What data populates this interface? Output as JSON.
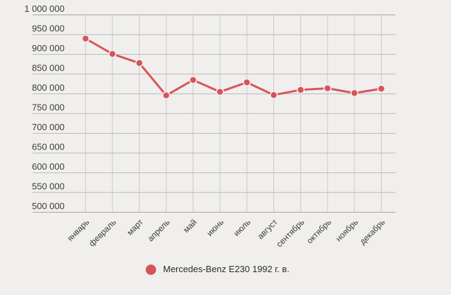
{
  "page": {
    "background": "#f0efed"
  },
  "chart_data": {
    "type": "line",
    "title": "",
    "categories": [
      "январь",
      "февраль",
      "март",
      "апрель",
      "май",
      "июнь",
      "июль",
      "август",
      "сентябрь",
      "октябрь",
      "ноябрь",
      "декабрь"
    ],
    "series": [
      {
        "name": "Mercedes-Benz E230 1992 г. в.",
        "color": "#d9535a",
        "values": [
          940000,
          901000,
          878000,
          796000,
          835000,
          805000,
          829000,
          797000,
          810000,
          814000,
          802000,
          813000
        ]
      }
    ],
    "ylim": [
      500000,
      1000000
    ],
    "ytick_step": 50000,
    "ytick_labels": [
      "1 000 000",
      "950 000",
      "900 000",
      "850 000",
      "800 000",
      "750 000",
      "700 000",
      "650 000",
      "600 000",
      "550 000",
      "500 000"
    ],
    "grid": true,
    "legend_position": "bottom"
  },
  "colors": {
    "grid_horizontal": "#bbbab8",
    "grid_vertical": "#c9c8c6",
    "axis_edge": "#a6a5a3",
    "tick_text": "#3b3b3b",
    "legend_text": "#2b2b2b",
    "point_halo": "#f2f1ef"
  }
}
